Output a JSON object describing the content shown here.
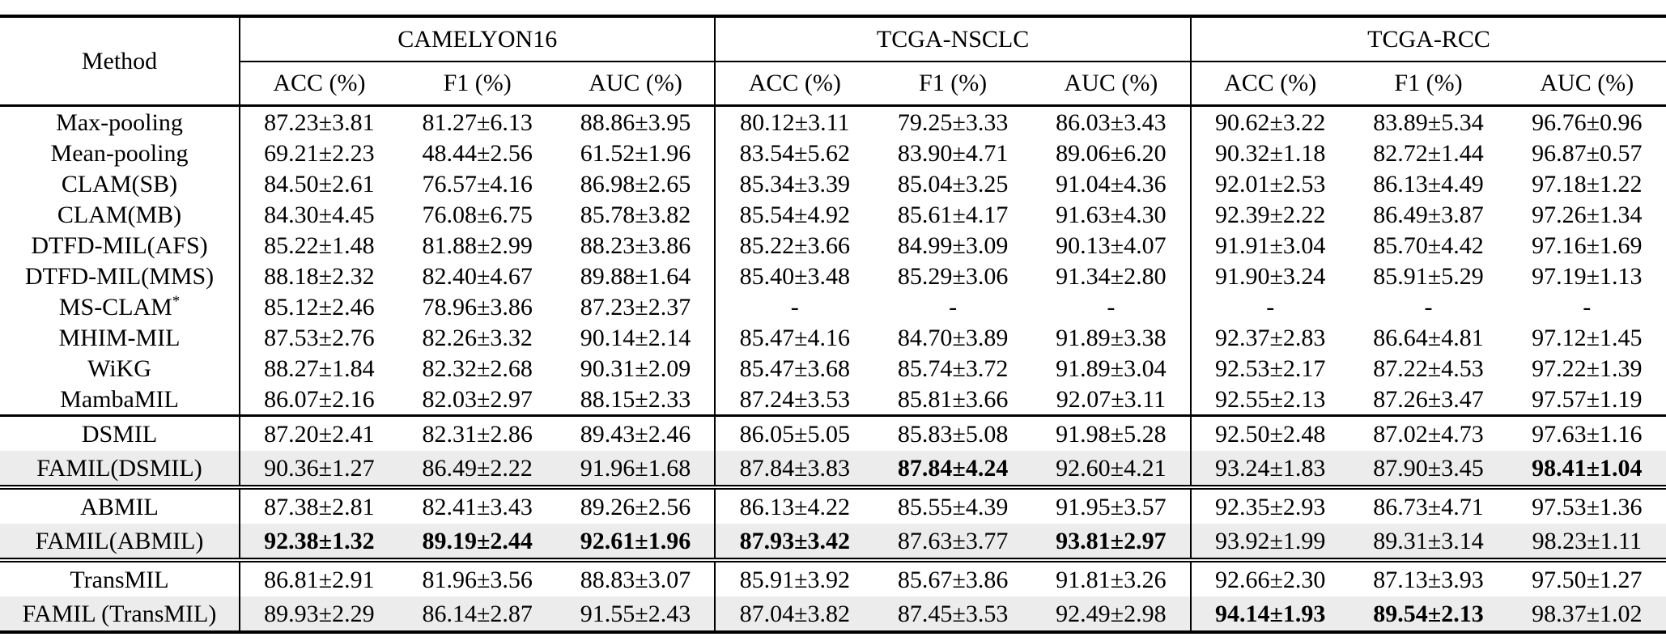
{
  "page": {
    "background": "#ffffff",
    "highlight_color": "#ececec",
    "text_color": "#000000"
  },
  "table": {
    "header": {
      "method_label": "Method",
      "groups": [
        {
          "label": "CAMELYON16",
          "columns": [
            "ACC (%)",
            "F1 (%)",
            "AUC (%)"
          ]
        },
        {
          "label": "TCGA-NSCLC",
          "columns": [
            "ACC (%)",
            "F1 (%)",
            "AUC (%)"
          ]
        },
        {
          "label": "TCGA-RCC",
          "columns": [
            "ACC (%)",
            "F1 (%)",
            "AUC (%)"
          ]
        }
      ]
    },
    "sections": [
      {
        "rows": [
          {
            "method": "Max-pooling",
            "highlight": false,
            "bold": [],
            "values": [
              "87.23±3.81",
              "81.27±6.13",
              "88.86±3.95",
              "80.12±3.11",
              "79.25±3.33",
              "86.03±3.43",
              "90.62±3.22",
              "83.89±5.34",
              "96.76±0.96"
            ]
          },
          {
            "method": "Mean-pooling",
            "highlight": false,
            "bold": [],
            "values": [
              "69.21±2.23",
              "48.44±2.56",
              "61.52±1.96",
              "83.54±5.62",
              "83.90±4.71",
              "89.06±6.20",
              "90.32±1.18",
              "82.72±1.44",
              "96.87±0.57"
            ]
          },
          {
            "method": "CLAM(SB)",
            "highlight": false,
            "bold": [],
            "values": [
              "84.50±2.61",
              "76.57±4.16",
              "86.98±2.65",
              "85.34±3.39",
              "85.04±3.25",
              "91.04±4.36",
              "92.01±2.53",
              "86.13±4.49",
              "97.18±1.22"
            ]
          },
          {
            "method": "CLAM(MB)",
            "highlight": false,
            "bold": [],
            "values": [
              "84.30±4.45",
              "76.08±6.75",
              "85.78±3.82",
              "85.54±4.92",
              "85.61±4.17",
              "91.63±4.30",
              "92.39±2.22",
              "86.49±3.87",
              "97.26±1.34"
            ]
          },
          {
            "method": "DTFD-MIL(AFS)",
            "highlight": false,
            "bold": [],
            "values": [
              "85.22±1.48",
              "81.88±2.99",
              "88.23±3.86",
              "85.22±3.66",
              "84.99±3.09",
              "90.13±4.07",
              "91.91±3.04",
              "85.70±4.42",
              "97.16±1.69"
            ]
          },
          {
            "method": "DTFD-MIL(MMS)",
            "highlight": false,
            "bold": [],
            "values": [
              "88.18±2.32",
              "82.40±4.67",
              "89.88±1.64",
              "85.40±3.48",
              "85.29±3.06",
              "91.34±2.80",
              "91.90±3.24",
              "85.91±5.29",
              "97.19±1.13"
            ]
          },
          {
            "method": "MS-CLAM*",
            "highlight": false,
            "bold": [],
            "values": [
              "85.12±2.46",
              "78.96±3.86",
              "87.23±2.37",
              "-",
              "-",
              "-",
              "-",
              "-",
              "-"
            ]
          },
          {
            "method": "MHIM-MIL",
            "highlight": false,
            "bold": [],
            "values": [
              "87.53±2.76",
              "82.26±3.32",
              "90.14±2.14",
              "85.47±4.16",
              "84.70±3.89",
              "91.89±3.38",
              "92.37±2.83",
              "86.64±4.81",
              "97.12±1.45"
            ]
          },
          {
            "method": "WiKG",
            "highlight": false,
            "bold": [],
            "values": [
              "88.27±1.84",
              "82.32±2.68",
              "90.31±2.09",
              "85.47±3.68",
              "85.74±3.72",
              "91.89±3.04",
              "92.53±2.17",
              "87.22±4.53",
              "97.22±1.39"
            ]
          },
          {
            "method": "MambaMIL",
            "highlight": false,
            "bold": [],
            "values": [
              "86.07±2.16",
              "82.03±2.97",
              "88.15±2.33",
              "87.24±3.53",
              "85.81±3.66",
              "92.07±3.11",
              "92.55±2.13",
              "87.26±3.47",
              "97.57±1.19"
            ]
          }
        ]
      },
      {
        "rows": [
          {
            "method": "DSMIL",
            "highlight": false,
            "bold": [],
            "values": [
              "87.20±2.41",
              "82.31±2.86",
              "89.43±2.46",
              "86.05±5.05",
              "85.83±5.08",
              "91.98±5.28",
              "92.50±2.48",
              "87.02±4.73",
              "97.63±1.16"
            ]
          },
          {
            "method": "FAMIL(DSMIL)",
            "highlight": true,
            "bold": [
              4,
              8
            ],
            "values": [
              "90.36±1.27",
              "86.49±2.22",
              "91.96±1.68",
              "87.84±3.83",
              "87.84±4.24",
              "92.60±4.21",
              "93.24±1.83",
              "87.90±3.45",
              "98.41±1.04"
            ]
          }
        ]
      },
      {
        "rows": [
          {
            "method": "ABMIL",
            "highlight": false,
            "bold": [],
            "values": [
              "87.38±2.81",
              "82.41±3.43",
              "89.26±2.56",
              "86.13±4.22",
              "85.55±4.39",
              "91.95±3.57",
              "92.35±2.93",
              "86.73±4.71",
              "97.53±1.36"
            ]
          },
          {
            "method": "FAMIL(ABMIL)",
            "highlight": true,
            "bold": [
              0,
              1,
              2,
              3,
              5
            ],
            "values": [
              "92.38±1.32",
              "89.19±2.44",
              "92.61±1.96",
              "87.93±3.42",
              "87.63±3.77",
              "93.81±2.97",
              "93.92±1.99",
              "89.31±3.14",
              "98.23±1.11"
            ]
          }
        ]
      },
      {
        "rows": [
          {
            "method": "TransMIL",
            "highlight": false,
            "bold": [],
            "values": [
              "86.81±2.91",
              "81.96±3.56",
              "88.83±3.07",
              "85.91±3.92",
              "85.67±3.86",
              "91.81±3.26",
              "92.66±2.30",
              "87.13±3.93",
              "97.50±1.27"
            ]
          },
          {
            "method": "FAMIL (TransMIL)",
            "highlight": true,
            "bold": [
              6,
              7
            ],
            "values": [
              "89.93±2.29",
              "86.14±2.87",
              "91.55±2.43",
              "87.04±3.82",
              "87.45±3.53",
              "92.49±2.98",
              "94.14±1.93",
              "89.54±2.13",
              "98.37±1.02"
            ]
          }
        ]
      }
    ]
  }
}
